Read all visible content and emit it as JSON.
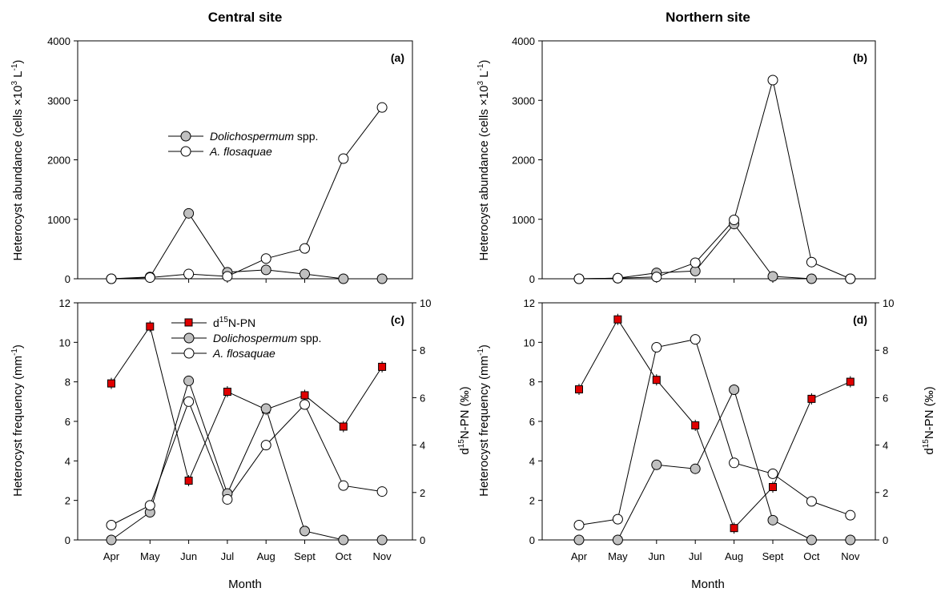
{
  "figure": {
    "left_title": "Central site",
    "right_title": "Northern site",
    "xlabel": "Month",
    "ylabel_abundance": "Heterocyst abundance (cells ×10",
    "ylabel_abundance_sup": "3",
    "ylabel_abundance_mid": " L",
    "ylabel_abundance_sup2": "-1",
    "ylabel_abundance_end": ")",
    "ylabel_frequency": "Heterocyst frequency (mm",
    "ylabel_frequency_sup": "-1",
    "ylabel_frequency_end": ")",
    "ylabel_d15n_pre": "d",
    "ylabel_d15n_sup": "15",
    "ylabel_d15n_post": "N-PN (‰)",
    "legend_d15n_pre": "d",
    "legend_d15n_sup": "15",
    "legend_d15n_post": "N-PN",
    "legend_dolicho_italic": "Dolichospermum",
    "legend_dolicho_rest": " spp.",
    "legend_aflos": "A. flosaquae"
  },
  "colors": {
    "dolichospermum_fill": "#c0c0c0",
    "aflosaquae_fill": "#ffffff",
    "d15n_fill": "#e00000",
    "line": "#000000"
  },
  "chart_data": [
    {
      "id": "a",
      "label": "(a)",
      "type": "line",
      "x": [
        "Apr",
        "May",
        "Jun",
        "Jul",
        "Aug",
        "Sept",
        "Oct",
        "Nov"
      ],
      "ylim": [
        0,
        4000
      ],
      "yticks": [
        0,
        1000,
        2000,
        3000,
        4000
      ],
      "series": [
        {
          "name": "Dolichospermum spp.",
          "marker": "circle-gray",
          "values": [
            0,
            30,
            1100,
            110,
            150,
            80,
            0,
            0
          ]
        },
        {
          "name": "A. flosaquae",
          "marker": "circle-white",
          "values": [
            0,
            20,
            80,
            40,
            340,
            510,
            2020,
            2880
          ]
        }
      ]
    },
    {
      "id": "b",
      "label": "(b)",
      "type": "line",
      "x": [
        "Apr",
        "May",
        "Jun",
        "Jul",
        "Aug",
        "Sept",
        "Oct",
        "Nov"
      ],
      "ylim": [
        0,
        4000
      ],
      "yticks": [
        0,
        1000,
        2000,
        3000,
        4000
      ],
      "series": [
        {
          "name": "Dolichospermum spp.",
          "marker": "circle-gray",
          "values": [
            0,
            10,
            100,
            130,
            920,
            40,
            0,
            0
          ]
        },
        {
          "name": "A. flosaquae",
          "marker": "circle-white",
          "values": [
            0,
            10,
            30,
            270,
            990,
            3340,
            280,
            0
          ]
        }
      ]
    },
    {
      "id": "c",
      "label": "(c)",
      "type": "line",
      "x": [
        "Apr",
        "May",
        "Jun",
        "Jul",
        "Aug",
        "Sept",
        "Oct",
        "Nov"
      ],
      "ylim": [
        0,
        12
      ],
      "yticks": [
        0,
        2,
        4,
        6,
        8,
        10,
        12
      ],
      "y2lim": [
        0,
        10
      ],
      "y2ticks": [
        0,
        2,
        4,
        6,
        8,
        10
      ],
      "series": [
        {
          "name": "d15N-PN",
          "axis": "right",
          "marker": "square-red",
          "values": [
            6.6,
            9.0,
            2.5,
            6.25,
            5.5,
            6.1,
            4.78,
            7.3
          ]
        },
        {
          "name": "Dolichospermum spp.",
          "axis": "left",
          "marker": "circle-gray",
          "values": [
            0,
            1.4,
            8.05,
            2.35,
            6.65,
            0.45,
            0,
            0
          ]
        },
        {
          "name": "A. flosaquae",
          "axis": "left",
          "marker": "circle-white",
          "values": [
            0.75,
            1.75,
            7.0,
            2.05,
            4.8,
            6.85,
            2.75,
            2.45
          ]
        }
      ]
    },
    {
      "id": "d",
      "label": "(d)",
      "type": "line",
      "x": [
        "Apr",
        "May",
        "Jun",
        "Jul",
        "Aug",
        "Sept",
        "Oct",
        "Nov"
      ],
      "ylim": [
        0,
        12
      ],
      "yticks": [
        0,
        2,
        4,
        6,
        8,
        10,
        12
      ],
      "y2lim": [
        0,
        10
      ],
      "y2ticks": [
        0,
        2,
        4,
        6,
        8,
        10
      ],
      "series": [
        {
          "name": "d15N-PN",
          "axis": "right",
          "marker": "square-red",
          "values": [
            6.35,
            9.3,
            6.75,
            4.83,
            0.5,
            2.23,
            5.95,
            6.67
          ]
        },
        {
          "name": "Dolichospermum spp.",
          "axis": "left",
          "marker": "circle-gray",
          "values": [
            0,
            0,
            3.8,
            3.6,
            7.6,
            1.0,
            0,
            0
          ]
        },
        {
          "name": "A. flosaquae",
          "axis": "left",
          "marker": "circle-white",
          "values": [
            0.75,
            1.05,
            9.75,
            10.15,
            3.9,
            3.35,
            1.95,
            1.25
          ]
        }
      ]
    }
  ]
}
